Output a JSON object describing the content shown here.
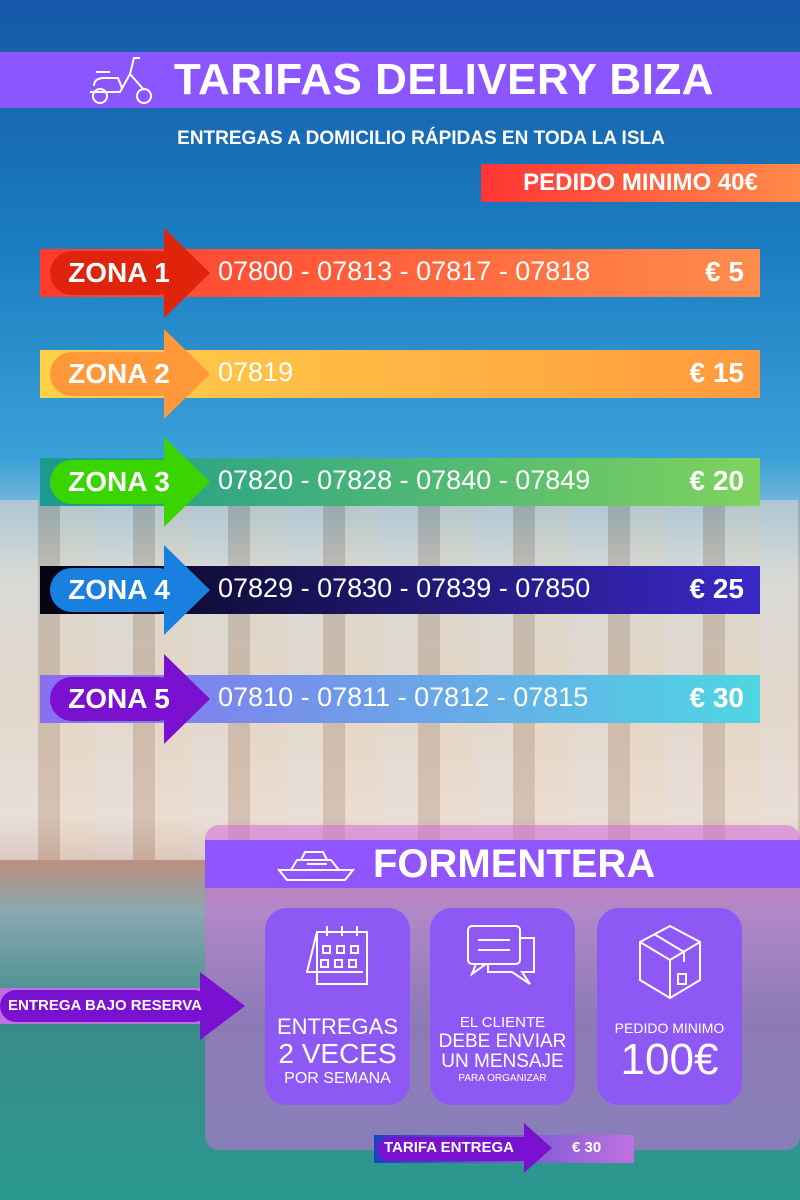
{
  "header": {
    "title": "TARIFAS DELIVERY BIZA",
    "subtitle": "ENTREGAS A DOMICILIO RÁPIDAS EN TODA LA ISLA",
    "min_order": "PEDIDO MINIMO 40€",
    "icon": "scooter-icon"
  },
  "zones": [
    {
      "label": "ZONA 1",
      "codes": "07800 - 07813 - 07817 - 07818",
      "price": "€ 5",
      "pill": "#e0240c",
      "bar": [
        "#ff3a2e",
        "#ff8c4c"
      ]
    },
    {
      "label": "ZONA 2",
      "codes": "07819",
      "price": "€ 15",
      "pill": "#ff9838",
      "bar": [
        "#ffd24a",
        "#ff9a3e"
      ]
    },
    {
      "label": "ZONA 3",
      "codes": "07820 - 07828 - 07840 - 07849",
      "price": "€ 20",
      "pill": "#3ad400",
      "bar": [
        "#1a9a8e",
        "#7ed25e"
      ]
    },
    {
      "label": "ZONA 4",
      "codes": "07829 - 07830 - 07839 - 07850",
      "price": "€ 25",
      "pill": "#1a80e0",
      "bar": [
        "#050512",
        "#3a28c8"
      ]
    },
    {
      "label": "ZONA 5",
      "codes": "07810 - 07811 - 07812 - 07815",
      "price": "€ 30",
      "pill": "#7a10d0",
      "bar": [
        "#8a6ef0",
        "#4ed6e2"
      ]
    }
  ],
  "formentera": {
    "title": "FORMENTERA",
    "icon": "boat-icon",
    "reserva": "ENTREGA BAJO RESERVA",
    "cards": [
      {
        "icon": "calendar-icon",
        "lines": [
          "ENTREGAS",
          "2 VECES",
          "POR SEMANA"
        ]
      },
      {
        "icon": "chat-icon",
        "lines": [
          "EL CLIENTE",
          "DEBE ENVIAR",
          "UN MENSAJE",
          "PARA ORGANIZAR"
        ]
      },
      {
        "icon": "box-icon",
        "lines": [
          "PEDIDO MINIMO",
          "100€"
        ]
      }
    ],
    "tarifa_label": "TARIFA ENTREGA",
    "tarifa_price": "€ 30"
  }
}
